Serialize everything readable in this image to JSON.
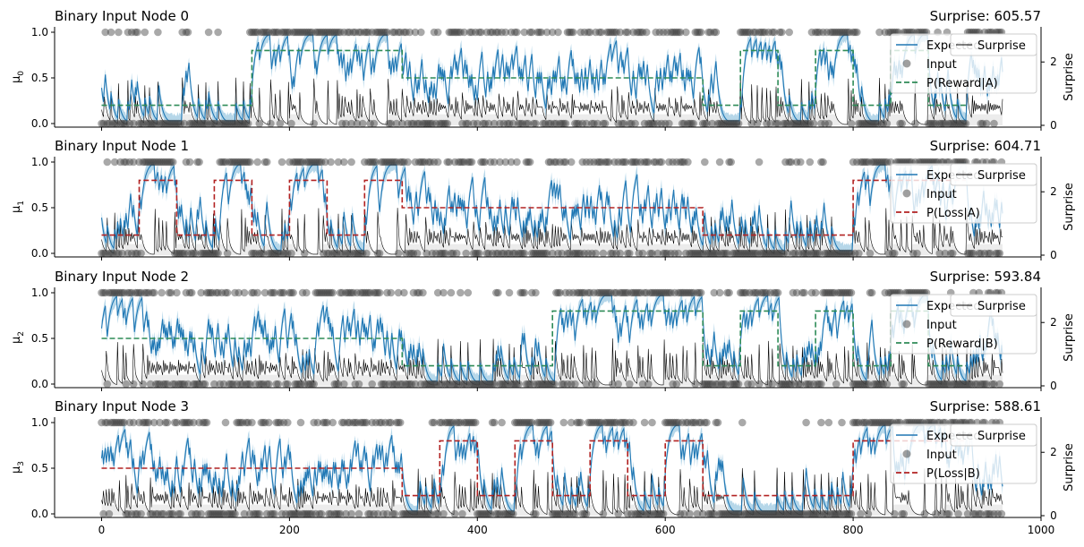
{
  "chart_data": [
    {
      "type": "line",
      "title": "Binary Input Node 0",
      "surprise_label": "Surprise: 605.57",
      "ylabel": "μ",
      "ylabel_sub": "0",
      "ylabel_right": "Surprise",
      "ylim": [
        0,
        1
      ],
      "y_ticks": [
        "0.0",
        "0.5",
        "1.0"
      ],
      "y2_ticks": [
        "0",
        "2"
      ],
      "legend": [
        "Expected",
        "Input",
        "P(Reward|A)"
      ],
      "legend_right": "Surprise",
      "prob_color": "#2e8b57",
      "prob_segments": [
        [
          0,
          160,
          0.2
        ],
        [
          160,
          320,
          0.8
        ],
        [
          320,
          640,
          0.5
        ],
        [
          640,
          680,
          0.2
        ],
        [
          680,
          720,
          0.8
        ],
        [
          720,
          760,
          0.2
        ],
        [
          760,
          800,
          0.8
        ],
        [
          800,
          840,
          0.2
        ],
        [
          840,
          880,
          0.8
        ],
        [
          880,
          920,
          0.2
        ]
      ],
      "seed": 11
    },
    {
      "type": "line",
      "title": "Binary Input Node 1",
      "surprise_label": "Surprise: 604.71",
      "ylabel": "μ",
      "ylabel_sub": "1",
      "ylabel_right": "Surprise",
      "ylim": [
        0,
        1
      ],
      "y_ticks": [
        "0.0",
        "0.5",
        "1.0"
      ],
      "y2_ticks": [
        "0",
        "2"
      ],
      "legend": [
        "Expected",
        "Input",
        "P(Loss|A)"
      ],
      "legend_right": "Surprise",
      "prob_color": "#b22222",
      "prob_segments": [
        [
          0,
          40,
          0.2
        ],
        [
          40,
          80,
          0.8
        ],
        [
          80,
          120,
          0.2
        ],
        [
          120,
          160,
          0.8
        ],
        [
          160,
          200,
          0.2
        ],
        [
          200,
          240,
          0.8
        ],
        [
          240,
          280,
          0.2
        ],
        [
          280,
          320,
          0.8
        ],
        [
          320,
          640,
          0.5
        ],
        [
          640,
          800,
          0.2
        ],
        [
          800,
          920,
          0.8
        ]
      ],
      "seed": 23
    },
    {
      "type": "line",
      "title": "Binary Input Node 2",
      "surprise_label": "Surprise: 593.84",
      "ylabel": "μ",
      "ylabel_sub": "2",
      "ylabel_right": "Surprise",
      "ylim": [
        0,
        1
      ],
      "y_ticks": [
        "0.0",
        "0.5",
        "1.0"
      ],
      "y2_ticks": [
        "0",
        "2"
      ],
      "legend": [
        "Expected",
        "Input",
        "P(Reward|B)"
      ],
      "legend_right": "Surprise",
      "prob_color": "#2e8b57",
      "prob_segments": [
        [
          0,
          320,
          0.5
        ],
        [
          320,
          480,
          0.2
        ],
        [
          480,
          640,
          0.8
        ],
        [
          640,
          680,
          0.2
        ],
        [
          680,
          720,
          0.8
        ],
        [
          720,
          760,
          0.2
        ],
        [
          760,
          800,
          0.8
        ],
        [
          800,
          840,
          0.2
        ],
        [
          840,
          880,
          0.8
        ],
        [
          880,
          920,
          0.2
        ]
      ],
      "seed": 37
    },
    {
      "type": "line",
      "title": "Binary Input Node 3",
      "surprise_label": "Surprise: 588.61",
      "ylabel": "μ",
      "ylabel_sub": "3",
      "ylabel_right": "Surprise",
      "ylim": [
        0,
        1
      ],
      "y_ticks": [
        "0.0",
        "0.5",
        "1.0"
      ],
      "y2_ticks": [
        "0",
        "2"
      ],
      "legend": [
        "Expected",
        "Input",
        "P(Loss|B)"
      ],
      "legend_right": "Surprise",
      "prob_color": "#b22222",
      "prob_segments": [
        [
          0,
          320,
          0.5
        ],
        [
          320,
          360,
          0.2
        ],
        [
          360,
          400,
          0.8
        ],
        [
          400,
          440,
          0.2
        ],
        [
          440,
          480,
          0.8
        ],
        [
          480,
          520,
          0.2
        ],
        [
          520,
          560,
          0.8
        ],
        [
          560,
          600,
          0.2
        ],
        [
          600,
          640,
          0.8
        ],
        [
          640,
          800,
          0.2
        ],
        [
          800,
          920,
          0.8
        ]
      ],
      "seed": 53
    }
  ],
  "x_axis": {
    "xlim": [
      -50,
      1000
    ],
    "ticks": [
      0,
      200,
      400,
      600,
      800,
      1000
    ],
    "n_trials": 960
  },
  "colors": {
    "expected": "#1f77b4",
    "band": "#9ecae1",
    "input": "#404040",
    "surprise": "#000000"
  }
}
